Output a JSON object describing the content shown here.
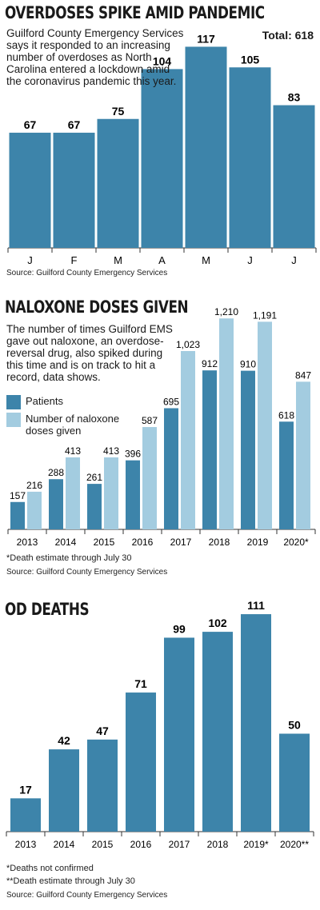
{
  "colors": {
    "dark": "#3d84aa",
    "light": "#a3cce0",
    "axis": "#333333"
  },
  "panel1": {
    "title": "OVERDOSES SPIKE AMID PANDEMIC",
    "description": "Guilford County Emergency Services says it responded to an increasing number of overdoses as North Carolina entered a lockdown amid the coronavirus pandemic this year.",
    "total": "Total: 618",
    "source": "Source: Guilford County Emergency Services"
  },
  "panel2": {
    "title": "NALOXONE DOSES GIVEN",
    "description": "The number of times Guilford EMS gave out naloxone, an overdose-reversal drug, also spiked during this time and is on track to hit a record, data shows.",
    "note": "*Death estimate through July 30",
    "source": "Source: Guilford County Emergency Services"
  },
  "panel3": {
    "title": "OD DEATHS",
    "note1": "*Deaths not confirmed",
    "note2": "**Death estimate through July 30",
    "source": "Source: Guilford County Emergency Services"
  },
  "chart_data": [
    {
      "type": "bar",
      "title": "OVERDOSES SPIKE AMID PANDEMIC",
      "categories": [
        "J",
        "F",
        "M",
        "A",
        "M",
        "J",
        "J"
      ],
      "values": [
        67,
        67,
        75,
        104,
        117,
        105,
        83
      ],
      "value_labels": [
        "67",
        "67",
        "75",
        "104",
        "117",
        "105",
        "83"
      ]
    },
    {
      "type": "bar",
      "title": "NALOXONE DOSES GIVEN",
      "categories": [
        "2013",
        "2014",
        "2015",
        "2016",
        "2017",
        "2018",
        "2019",
        "2020*"
      ],
      "series": [
        {
          "name": "Patients",
          "values": [
            157,
            288,
            261,
            396,
            695,
            912,
            910,
            618
          ],
          "value_labels": [
            "157",
            "288",
            "261",
            "396",
            "695",
            "912",
            "910",
            "618"
          ]
        },
        {
          "name": "Number of naloxone doses given",
          "values": [
            216,
            413,
            413,
            587,
            1023,
            1210,
            1191,
            847
          ],
          "value_labels": [
            "216",
            "413",
            "413",
            "587",
            "1,023",
            "1,210",
            "1,191",
            "847"
          ]
        }
      ],
      "legend": "left"
    },
    {
      "type": "bar",
      "title": "OD DEATHS",
      "categories": [
        "2013",
        "2014",
        "2015",
        "2016",
        "2017",
        "2018",
        "2019*",
        "2020**"
      ],
      "values": [
        17,
        42,
        47,
        71,
        99,
        102,
        111,
        50
      ],
      "value_labels": [
        "17",
        "42",
        "47",
        "71",
        "99",
        "102",
        "111",
        "50"
      ]
    }
  ]
}
